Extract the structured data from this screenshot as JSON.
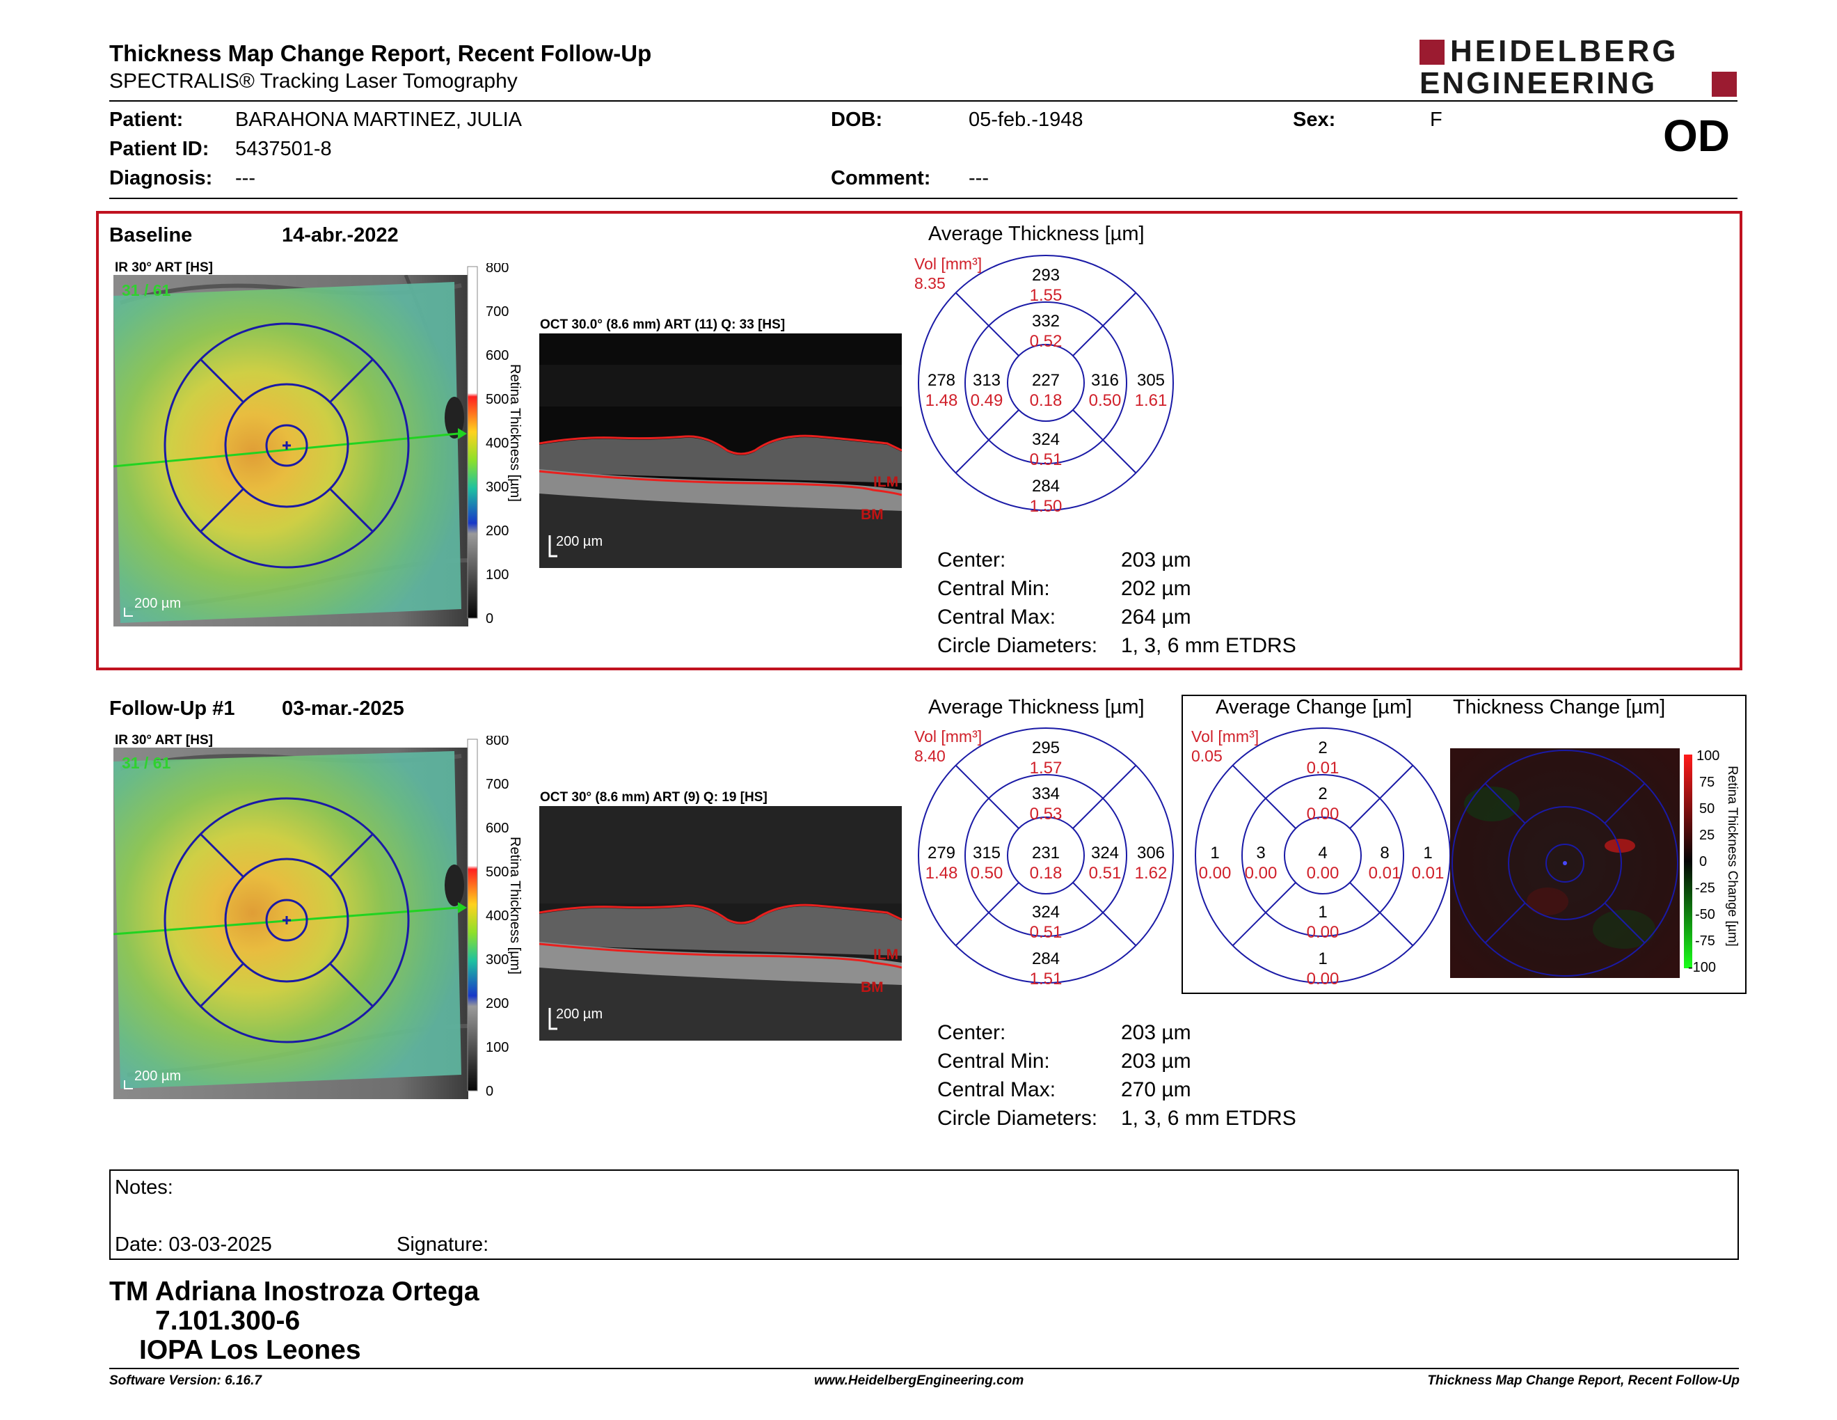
{
  "header": {
    "title": "Thickness Map Change Report, Recent Follow-Up",
    "subtitle": "SPECTRALIS® Tracking Laser Tomography",
    "logo_line1": "HEIDELBERG",
    "logo_line2": "ENGINEERING",
    "eye": "OD"
  },
  "patient": {
    "name_label": "Patient:",
    "name": "BARAHONA MARTINEZ, JULIA",
    "id_label": "Patient ID:",
    "id": "5437501-8",
    "diagnosis_label": "Diagnosis:",
    "diagnosis": "---",
    "dob_label": "DOB:",
    "dob": "05-feb.-1948",
    "comment_label": "Comment:",
    "comment": "---",
    "sex_label": "Sex:",
    "sex": "F"
  },
  "baseline": {
    "label": "Baseline",
    "date": "14-abr.-2022",
    "ir_label": "IR 30° ART [HS]",
    "ir_frame": "31 / 61",
    "oct_label": "OCT 30.0° (8.6 mm) ART (11) Q: 33 [HS]",
    "scale": "200 µm",
    "colorbar_title": "Retina Thickness [µm]",
    "colorbar_ticks": [
      "800",
      "700",
      "600",
      "500",
      "400",
      "300",
      "200",
      "100",
      "0"
    ],
    "layer_top": "ILM",
    "layer_bottom": "BM",
    "etdrs_title": "Average Thickness [µm]",
    "vol_label": "Vol [mm³]",
    "vol_total": "8.35",
    "etdrs": {
      "outer_sup": [
        "293",
        "1.55"
      ],
      "inner_sup": [
        "332",
        "0.52"
      ],
      "outer_temp": [
        "278",
        "1.48"
      ],
      "inner_temp": [
        "313",
        "0.49"
      ],
      "center": [
        "227",
        "0.18"
      ],
      "inner_nas": [
        "316",
        "0.50"
      ],
      "outer_nas": [
        "305",
        "1.61"
      ],
      "inner_inf": [
        "324",
        "0.51"
      ],
      "outer_inf": [
        "284",
        "1.50"
      ]
    },
    "stats": [
      [
        "Center:",
        "203 µm"
      ],
      [
        "Central Min:",
        "202 µm"
      ],
      [
        "Central Max:",
        "264 µm"
      ],
      [
        "Circle Diameters:",
        "1, 3, 6 mm ETDRS"
      ]
    ]
  },
  "followup": {
    "label": "Follow-Up #1",
    "date": "03-mar.-2025",
    "ir_label": "IR 30° ART [HS]",
    "ir_frame": "31 / 61",
    "oct_label": "OCT 30° (8.6 mm) ART (9) Q: 19 [HS]",
    "scale": "200 µm",
    "colorbar_title": "Retina Thickness [µm]",
    "colorbar_ticks": [
      "800",
      "700",
      "600",
      "500",
      "400",
      "300",
      "200",
      "100",
      "0"
    ],
    "layer_top": "ILM",
    "layer_bottom": "BM",
    "etdrs_title": "Average Thickness [µm]",
    "vol_label": "Vol [mm³]",
    "vol_total": "8.40",
    "etdrs": {
      "outer_sup": [
        "295",
        "1.57"
      ],
      "inner_sup": [
        "334",
        "0.53"
      ],
      "outer_temp": [
        "279",
        "1.48"
      ],
      "inner_temp": [
        "315",
        "0.50"
      ],
      "center": [
        "231",
        "0.18"
      ],
      "inner_nas": [
        "324",
        "0.51"
      ],
      "outer_nas": [
        "306",
        "1.62"
      ],
      "inner_inf": [
        "324",
        "0.51"
      ],
      "outer_inf": [
        "284",
        "1.51"
      ]
    },
    "stats": [
      [
        "Center:",
        "203 µm"
      ],
      [
        "Central Min:",
        "203 µm"
      ],
      [
        "Central Max:",
        "270 µm"
      ],
      [
        "Circle Diameters:",
        "1, 3, 6 mm ETDRS"
      ]
    ]
  },
  "change": {
    "etdrs_title": "Average Change [µm]",
    "vol_label": "Vol [mm³]",
    "vol_total": "0.05",
    "etdrs": {
      "outer_sup": [
        "2",
        "0.01"
      ],
      "inner_sup": [
        "2",
        "0.00"
      ],
      "outer_temp": [
        "1",
        "0.00"
      ],
      "inner_temp": [
        "3",
        "0.00"
      ],
      "center": [
        "4",
        "0.00"
      ],
      "inner_nas": [
        "8",
        "0.01"
      ],
      "outer_nas": [
        "1",
        "0.01"
      ],
      "inner_inf": [
        "1",
        "0.00"
      ],
      "outer_inf": [
        "1",
        "0.00"
      ]
    },
    "map_title": "Thickness Change [µm]",
    "colorbar_title": "Retina Thickness Change [µm]",
    "colorbar_ticks": [
      "100",
      "75",
      "50",
      "25",
      "0",
      "-25",
      "-50",
      "-75",
      "-100"
    ]
  },
  "notes": {
    "label": "Notes:",
    "date_label": "Date: 03-03-2025",
    "signature_label": "Signature:"
  },
  "signoff": {
    "name": "TM Adriana Inostroza Ortega",
    "rut": "7.101.300-6",
    "place": "IOPA Los Leones"
  },
  "footer": {
    "software": "Software Version: 6.16.7",
    "url": "www.HeidelbergEngineering.com",
    "report": "Thickness Map Change Report, Recent Follow-Up"
  },
  "colors": {
    "red_frame": "#c0121f",
    "etdrs_blue": "#1a1aa6",
    "volume_red": "#d0202a",
    "logo": "#9b1b30"
  }
}
